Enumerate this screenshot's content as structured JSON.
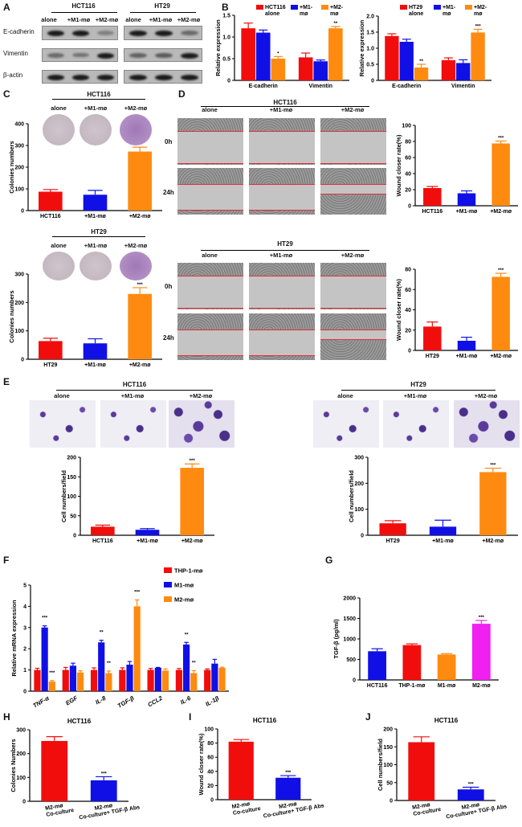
{
  "panel_letters": [
    "A",
    "B",
    "C",
    "D",
    "E",
    "F",
    "G",
    "H",
    "I",
    "J"
  ],
  "panel_a": {
    "groups": [
      "HCT116",
      "HT29"
    ],
    "columns": [
      "alone",
      "+M1-mø",
      "+M2-mø"
    ],
    "rows": [
      "E-cadherin",
      "Vimentin",
      "β-actin"
    ]
  },
  "panel_c": {
    "groups": [
      "HCT116",
      "HT29"
    ],
    "columns": [
      "alone",
      "+M1-mø",
      "+M2-mø"
    ]
  },
  "panel_d": {
    "groups": [
      "HCT116",
      "HT29"
    ],
    "columns": [
      "alone",
      "+M1-mø",
      "+M2-mø"
    ],
    "times": [
      "0h",
      "24h"
    ]
  },
  "panel_e": {
    "groups": [
      "HCT116",
      "HT29"
    ],
    "columns": [
      "alone",
      "+M1-mø",
      "+M2-mø"
    ]
  },
  "colors": {
    "red": "#f20d0d",
    "blue": "#1010e6",
    "orange": "#ff8a10",
    "magenta": "#f020f0"
  },
  "chart_data": [
    {
      "id": "B1",
      "type": "bar",
      "ylabel": "Relative expression",
      "ylim": [
        0,
        1.5
      ],
      "ticks": [
        0,
        0.5,
        1.0,
        1.5
      ],
      "categories": [
        "E-cadherin",
        "Vimentin"
      ],
      "series": [
        {
          "name": "HCT116 alone",
          "color": "#f20d0d",
          "values": [
            1.2,
            0.53
          ],
          "errors": [
            0.12,
            0.1
          ],
          "sig": [
            "",
            ""
          ]
        },
        {
          "name": "+M1-mø",
          "color": "#1010e6",
          "values": [
            1.1,
            0.44
          ],
          "errors": [
            0.06,
            0.03
          ],
          "sig": [
            "",
            ""
          ]
        },
        {
          "name": "+M2-mø",
          "color": "#ff8a10",
          "values": [
            0.5,
            1.2
          ],
          "errors": [
            0.05,
            0.04
          ],
          "sig": [
            "*",
            "**"
          ]
        }
      ]
    },
    {
      "id": "B2",
      "type": "bar",
      "ylabel": "Relative expression",
      "ylim": [
        0,
        2.0
      ],
      "ticks": [
        0,
        0.5,
        1.0,
        1.5,
        2.0
      ],
      "categories": [
        "E-cadherin",
        "Vimentin"
      ],
      "series": [
        {
          "name": "HT29 alone",
          "color": "#f20d0d",
          "values": [
            1.38,
            0.63
          ],
          "errors": [
            0.07,
            0.07
          ],
          "sig": [
            "",
            ""
          ]
        },
        {
          "name": "+M1-mø",
          "color": "#1010e6",
          "values": [
            1.2,
            0.54
          ],
          "errors": [
            0.08,
            0.1
          ],
          "sig": [
            "",
            ""
          ]
        },
        {
          "name": "+M2-mø",
          "color": "#ff8a10",
          "values": [
            0.4,
            1.49
          ],
          "errors": [
            0.1,
            0.1
          ],
          "sig": [
            "**",
            "***"
          ]
        }
      ]
    },
    {
      "id": "C1",
      "type": "bar",
      "ylabel": "Colonies numbers",
      "ylim": [
        0,
        400
      ],
      "ticks": [
        0,
        100,
        200,
        300,
        400
      ],
      "categories": [
        "HCT116",
        "+M1-mø",
        "+M2-mø"
      ],
      "values": [
        87,
        73,
        272
      ],
      "errors": [
        10,
        20,
        20
      ],
      "colors": [
        "#f20d0d",
        "#1010e6",
        "#ff8a10"
      ],
      "sig": [
        "",
        "",
        "***"
      ]
    },
    {
      "id": "C2",
      "type": "bar",
      "ylabel": "Colonies numbers",
      "ylim": [
        0,
        300
      ],
      "ticks": [
        0,
        100,
        200,
        300
      ],
      "categories": [
        "HT29",
        "+M1-mø",
        "+M2-mø"
      ],
      "values": [
        64,
        56,
        230
      ],
      "errors": [
        10,
        16,
        22
      ],
      "colors": [
        "#f20d0d",
        "#1010e6",
        "#ff8a10"
      ],
      "sig": [
        "",
        "",
        "***"
      ]
    },
    {
      "id": "D1",
      "type": "bar",
      "ylabel": "Wound closer rate(%)",
      "ylim": [
        0,
        100
      ],
      "ticks": [
        0,
        20,
        40,
        60,
        80,
        100
      ],
      "categories": [
        "HCT116",
        "+M1-mø",
        "+M2-mø"
      ],
      "values": [
        22,
        15.5,
        77.5
      ],
      "errors": [
        2,
        3,
        3
      ],
      "colors": [
        "#f20d0d",
        "#1010e6",
        "#ff8a10"
      ],
      "sig": [
        "",
        "",
        "***"
      ]
    },
    {
      "id": "D2",
      "type": "bar",
      "ylabel": "Wound closer rate(%)",
      "ylim": [
        0,
        80
      ],
      "ticks": [
        0,
        20,
        40,
        60,
        80
      ],
      "categories": [
        "HT29",
        "+M1-mø",
        "+M2-mø"
      ],
      "values": [
        23.5,
        9.5,
        72.5
      ],
      "errors": [
        4.5,
        3.5,
        3.5
      ],
      "colors": [
        "#f20d0d",
        "#1010e6",
        "#ff8a10"
      ],
      "sig": [
        "",
        "",
        "***"
      ]
    },
    {
      "id": "E1",
      "type": "bar",
      "ylabel": "Cell numbers/field",
      "ylim": [
        0,
        200
      ],
      "ticks": [
        0,
        50,
        100,
        150,
        200
      ],
      "categories": [
        "HCT116",
        "+M1-mø",
        "+M2-mø"
      ],
      "values": [
        22,
        14,
        173
      ],
      "errors": [
        4,
        3,
        10
      ],
      "colors": [
        "#f20d0d",
        "#1010e6",
        "#ff8a10"
      ],
      "sig": [
        "",
        "",
        "***"
      ]
    },
    {
      "id": "E2",
      "type": "bar",
      "ylabel": "Cell numbers/field",
      "ylim": [
        0,
        300
      ],
      "ticks": [
        0,
        100,
        200,
        300
      ],
      "categories": [
        "HT29",
        "+M1-mø",
        "+M2-mø"
      ],
      "values": [
        46,
        33,
        243
      ],
      "errors": [
        10,
        25,
        15
      ],
      "colors": [
        "#f20d0d",
        "#1010e6",
        "#ff8a10"
      ],
      "sig": [
        "",
        "",
        "***"
      ]
    },
    {
      "id": "F",
      "type": "bar",
      "ylabel": "Relative mRNA expression",
      "ylim": [
        0,
        5
      ],
      "ticks": [
        0,
        1,
        2,
        3,
        4,
        5
      ],
      "legend": "right-top",
      "categories": [
        "TNF-α",
        "EGF",
        "IL-8",
        "TGF-β",
        "CCL2",
        "IL-6",
        "IL-1β"
      ],
      "series": [
        {
          "name": "THP-1-mø",
          "color": "#f20d0d",
          "values": [
            1,
            1,
            1,
            1,
            1,
            1,
            1
          ],
          "errors": [
            0.08,
            0.12,
            0.1,
            0.1,
            0.07,
            0.07,
            0.05
          ],
          "sig": [
            "",
            "",
            "",
            "",
            "",
            "",
            ""
          ]
        },
        {
          "name": "M1-mø",
          "color": "#1010e6",
          "values": [
            3.0,
            1.2,
            2.3,
            1.25,
            1.1,
            2.2,
            1.3
          ],
          "errors": [
            0.08,
            0.12,
            0.1,
            0.15,
            0.02,
            0.1,
            0.2
          ],
          "sig": [
            "***",
            "",
            "**",
            "",
            "",
            "**",
            ""
          ]
        },
        {
          "name": "M2-mø",
          "color": "#ff8a10",
          "values": [
            0.45,
            0.88,
            0.85,
            4.0,
            0.97,
            0.85,
            1.1
          ],
          "errors": [
            0.05,
            0.08,
            0.1,
            0.3,
            0.08,
            0.12,
            0.03
          ],
          "sig": [
            "***",
            "",
            "**",
            "***",
            "",
            "**",
            ""
          ]
        }
      ]
    },
    {
      "id": "G",
      "type": "bar",
      "ylabel": "TGF-β (pg/ml)",
      "ylim": [
        0,
        2000
      ],
      "ticks": [
        0,
        500,
        1000,
        1500,
        2000
      ],
      "categories": [
        "HCT116",
        "THP-1-mø",
        "M1-mø",
        "M2-mø"
      ],
      "values": [
        700,
        850,
        620,
        1370
      ],
      "errors": [
        60,
        30,
        20,
        80
      ],
      "colors": [
        "#1010e6",
        "#f20d0d",
        "#ff8a10",
        "#f020f0"
      ],
      "sig": [
        "",
        "",
        "",
        "***"
      ]
    },
    {
      "id": "H",
      "type": "bar",
      "title": "HCT116",
      "ylabel": "Colonies Numbers",
      "ylim": [
        0,
        300
      ],
      "ticks": [
        0,
        100,
        200,
        300
      ],
      "categories": [
        "M2-mø\nCo-culture",
        "M2-mø\nCo-culture+ TGF-β Abs"
      ],
      "values": [
        253,
        88
      ],
      "errors": [
        18,
        15
      ],
      "colors": [
        "#f20d0d",
        "#1010e6"
      ],
      "sig": [
        "",
        "***"
      ]
    },
    {
      "id": "I",
      "type": "bar",
      "title": "HCT116",
      "ylabel": "Wound closer rate(%)",
      "ylim": [
        0,
        100
      ],
      "ticks": [
        0,
        20,
        40,
        60,
        80,
        100
      ],
      "categories": [
        "M2-mø\nCo-culture",
        "M2-mø\nCo-culture+ TGF-β Abs"
      ],
      "values": [
        82,
        31
      ],
      "errors": [
        3,
        3
      ],
      "colors": [
        "#f20d0d",
        "#1010e6"
      ],
      "sig": [
        "",
        "***"
      ]
    },
    {
      "id": "J",
      "type": "bar",
      "title": "HCT116",
      "ylabel": "Cell numbers/field",
      "ylim": [
        0,
        200
      ],
      "ticks": [
        0,
        50,
        100,
        150,
        200
      ],
      "categories": [
        "M2-mø\nCo-culture",
        "M2-mø\nCo-culture+ TGF-β Abs"
      ],
      "values": [
        163,
        31
      ],
      "errors": [
        15,
        6
      ],
      "colors": [
        "#f20d0d",
        "#1010e6"
      ],
      "sig": [
        "",
        "***"
      ]
    }
  ]
}
